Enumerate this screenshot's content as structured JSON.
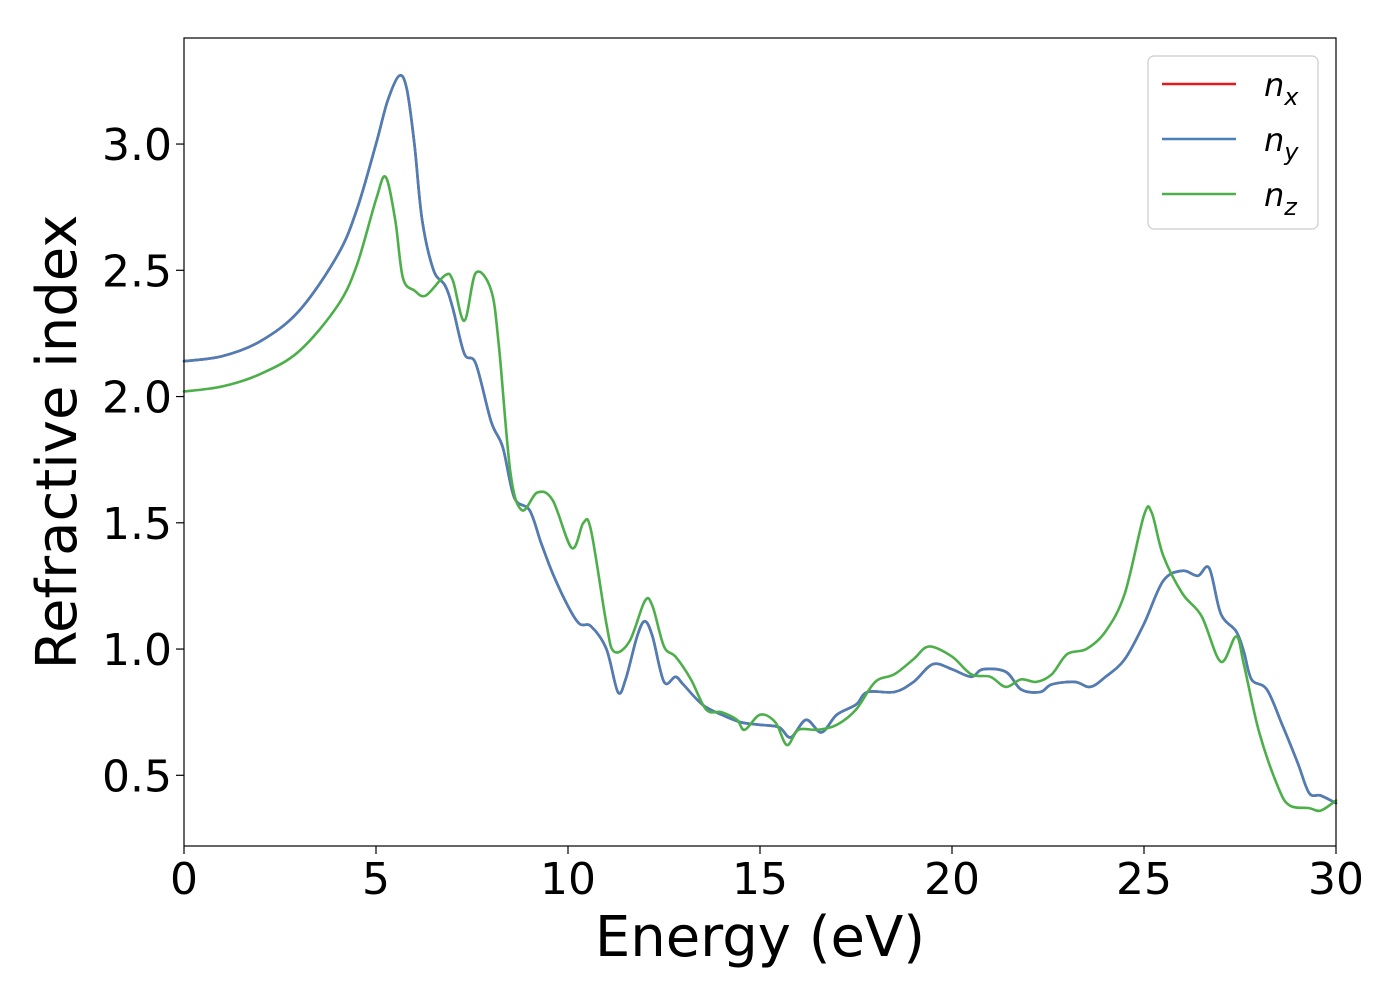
{
  "chart_data": {
    "type": "line",
    "xlabel": "Energy (eV)",
    "ylabel": "Refractive index",
    "xlim": [
      0,
      30
    ],
    "ylim": [
      0.22,
      3.42
    ],
    "xticks": [
      "0",
      "5",
      "10",
      "15",
      "20",
      "25",
      "30"
    ],
    "xtick_values": [
      0,
      5,
      10,
      15,
      20,
      25,
      30
    ],
    "yticks": [
      "0.5",
      "1.0",
      "1.5",
      "2.0",
      "2.5",
      "3.0"
    ],
    "ytick_values": [
      0.5,
      1.0,
      1.5,
      2.0,
      2.5,
      3.0
    ],
    "grid": false,
    "legend_position": "top-right",
    "series": [
      {
        "name": "n",
        "subscript": "x",
        "color": "#e41a1c",
        "points": [
          [
            0,
            2.14
          ],
          [
            1,
            2.16
          ],
          [
            2,
            2.22
          ],
          [
            3,
            2.34
          ],
          [
            4,
            2.56
          ],
          [
            4.5,
            2.74
          ],
          [
            5,
            3.0
          ],
          [
            5.3,
            3.17
          ],
          [
            5.6,
            3.27
          ],
          [
            5.8,
            3.22
          ],
          [
            6.0,
            3.0
          ],
          [
            6.2,
            2.7
          ],
          [
            6.5,
            2.5
          ],
          [
            6.8,
            2.44
          ],
          [
            7.0,
            2.35
          ],
          [
            7.3,
            2.17
          ],
          [
            7.6,
            2.13
          ],
          [
            8.0,
            1.9
          ],
          [
            8.3,
            1.8
          ],
          [
            8.6,
            1.6
          ],
          [
            9.0,
            1.55
          ],
          [
            9.3,
            1.42
          ],
          [
            9.6,
            1.3
          ],
          [
            10.0,
            1.17
          ],
          [
            10.3,
            1.1
          ],
          [
            10.6,
            1.09
          ],
          [
            11.0,
            1.0
          ],
          [
            11.3,
            0.83
          ],
          [
            11.5,
            0.88
          ],
          [
            11.8,
            1.05
          ],
          [
            12.0,
            1.11
          ],
          [
            12.2,
            1.05
          ],
          [
            12.5,
            0.87
          ],
          [
            12.8,
            0.89
          ],
          [
            13.0,
            0.86
          ],
          [
            13.5,
            0.78
          ],
          [
            14.0,
            0.74
          ],
          [
            14.5,
            0.71
          ],
          [
            15.0,
            0.7
          ],
          [
            15.5,
            0.69
          ],
          [
            15.8,
            0.65
          ],
          [
            16.2,
            0.72
          ],
          [
            16.6,
            0.67
          ],
          [
            17.0,
            0.74
          ],
          [
            17.5,
            0.78
          ],
          [
            17.8,
            0.83
          ],
          [
            18.5,
            0.83
          ],
          [
            19.0,
            0.87
          ],
          [
            19.5,
            0.94
          ],
          [
            20.0,
            0.92
          ],
          [
            20.5,
            0.89
          ],
          [
            20.8,
            0.92
          ],
          [
            21.4,
            0.91
          ],
          [
            21.8,
            0.84
          ],
          [
            22.3,
            0.83
          ],
          [
            22.6,
            0.86
          ],
          [
            23.2,
            0.87
          ],
          [
            23.6,
            0.85
          ],
          [
            24.0,
            0.89
          ],
          [
            24.5,
            0.96
          ],
          [
            25.0,
            1.1
          ],
          [
            25.5,
            1.27
          ],
          [
            26.0,
            1.31
          ],
          [
            26.4,
            1.29
          ],
          [
            26.7,
            1.32
          ],
          [
            27.0,
            1.14
          ],
          [
            27.4,
            1.07
          ],
          [
            27.6,
            0.99
          ],
          [
            27.8,
            0.88
          ],
          [
            28.2,
            0.84
          ],
          [
            28.6,
            0.7
          ],
          [
            29.0,
            0.55
          ],
          [
            29.3,
            0.43
          ],
          [
            29.6,
            0.42
          ],
          [
            30.0,
            0.39
          ]
        ]
      },
      {
        "name": "n",
        "subscript": "y",
        "color": "#4a7fb8",
        "points": [
          [
            0,
            2.14
          ],
          [
            1,
            2.16
          ],
          [
            2,
            2.22
          ],
          [
            3,
            2.34
          ],
          [
            4,
            2.56
          ],
          [
            4.5,
            2.74
          ],
          [
            5,
            3.0
          ],
          [
            5.3,
            3.17
          ],
          [
            5.6,
            3.27
          ],
          [
            5.8,
            3.22
          ],
          [
            6.0,
            3.0
          ],
          [
            6.2,
            2.7
          ],
          [
            6.5,
            2.5
          ],
          [
            6.8,
            2.44
          ],
          [
            7.0,
            2.35
          ],
          [
            7.3,
            2.17
          ],
          [
            7.6,
            2.13
          ],
          [
            8.0,
            1.9
          ],
          [
            8.3,
            1.8
          ],
          [
            8.6,
            1.6
          ],
          [
            9.0,
            1.55
          ],
          [
            9.3,
            1.42
          ],
          [
            9.6,
            1.3
          ],
          [
            10.0,
            1.17
          ],
          [
            10.3,
            1.1
          ],
          [
            10.6,
            1.09
          ],
          [
            11.0,
            1.0
          ],
          [
            11.3,
            0.83
          ],
          [
            11.5,
            0.88
          ],
          [
            11.8,
            1.05
          ],
          [
            12.0,
            1.11
          ],
          [
            12.2,
            1.05
          ],
          [
            12.5,
            0.87
          ],
          [
            12.8,
            0.89
          ],
          [
            13.0,
            0.86
          ],
          [
            13.5,
            0.78
          ],
          [
            14.0,
            0.74
          ],
          [
            14.5,
            0.71
          ],
          [
            15.0,
            0.7
          ],
          [
            15.5,
            0.69
          ],
          [
            15.8,
            0.65
          ],
          [
            16.2,
            0.72
          ],
          [
            16.6,
            0.67
          ],
          [
            17.0,
            0.74
          ],
          [
            17.5,
            0.78
          ],
          [
            17.8,
            0.83
          ],
          [
            18.5,
            0.83
          ],
          [
            19.0,
            0.87
          ],
          [
            19.5,
            0.94
          ],
          [
            20.0,
            0.92
          ],
          [
            20.5,
            0.89
          ],
          [
            20.8,
            0.92
          ],
          [
            21.4,
            0.91
          ],
          [
            21.8,
            0.84
          ],
          [
            22.3,
            0.83
          ],
          [
            22.6,
            0.86
          ],
          [
            23.2,
            0.87
          ],
          [
            23.6,
            0.85
          ],
          [
            24.0,
            0.89
          ],
          [
            24.5,
            0.96
          ],
          [
            25.0,
            1.1
          ],
          [
            25.5,
            1.27
          ],
          [
            26.0,
            1.31
          ],
          [
            26.4,
            1.29
          ],
          [
            26.7,
            1.32
          ],
          [
            27.0,
            1.14
          ],
          [
            27.4,
            1.07
          ],
          [
            27.6,
            0.99
          ],
          [
            27.8,
            0.88
          ],
          [
            28.2,
            0.84
          ],
          [
            28.6,
            0.7
          ],
          [
            29.0,
            0.55
          ],
          [
            29.3,
            0.43
          ],
          [
            29.6,
            0.42
          ],
          [
            30.0,
            0.39
          ]
        ]
      },
      {
        "name": "n",
        "subscript": "z",
        "color": "#4daf4a",
        "points": [
          [
            0,
            2.02
          ],
          [
            1,
            2.04
          ],
          [
            2,
            2.09
          ],
          [
            3,
            2.18
          ],
          [
            4,
            2.36
          ],
          [
            4.5,
            2.52
          ],
          [
            5,
            2.78
          ],
          [
            5.25,
            2.87
          ],
          [
            5.5,
            2.7
          ],
          [
            5.7,
            2.47
          ],
          [
            6.0,
            2.42
          ],
          [
            6.3,
            2.4
          ],
          [
            6.8,
            2.48
          ],
          [
            7.0,
            2.46
          ],
          [
            7.3,
            2.3
          ],
          [
            7.6,
            2.49
          ],
          [
            8.0,
            2.42
          ],
          [
            8.2,
            2.2
          ],
          [
            8.5,
            1.7
          ],
          [
            8.8,
            1.55
          ],
          [
            9.2,
            1.62
          ],
          [
            9.6,
            1.59
          ],
          [
            10.1,
            1.4
          ],
          [
            10.4,
            1.5
          ],
          [
            10.6,
            1.47
          ],
          [
            11.0,
            1.1
          ],
          [
            11.2,
            0.99
          ],
          [
            11.6,
            1.03
          ],
          [
            12.0,
            1.19
          ],
          [
            12.2,
            1.17
          ],
          [
            12.5,
            1.01
          ],
          [
            12.8,
            0.97
          ],
          [
            13.2,
            0.88
          ],
          [
            13.6,
            0.76
          ],
          [
            14.0,
            0.75
          ],
          [
            14.4,
            0.72
          ],
          [
            14.6,
            0.68
          ],
          [
            15.0,
            0.74
          ],
          [
            15.4,
            0.71
          ],
          [
            15.7,
            0.62
          ],
          [
            16.0,
            0.68
          ],
          [
            16.5,
            0.68
          ],
          [
            17.0,
            0.7
          ],
          [
            17.5,
            0.76
          ],
          [
            18.0,
            0.87
          ],
          [
            18.5,
            0.9
          ],
          [
            19.0,
            0.96
          ],
          [
            19.4,
            1.01
          ],
          [
            20.0,
            0.97
          ],
          [
            20.5,
            0.9
          ],
          [
            21.0,
            0.89
          ],
          [
            21.4,
            0.85
          ],
          [
            21.8,
            0.88
          ],
          [
            22.2,
            0.87
          ],
          [
            22.6,
            0.9
          ],
          [
            23.0,
            0.98
          ],
          [
            23.5,
            1.0
          ],
          [
            24.0,
            1.07
          ],
          [
            24.5,
            1.22
          ],
          [
            25.0,
            1.53
          ],
          [
            25.2,
            1.54
          ],
          [
            25.5,
            1.37
          ],
          [
            26.0,
            1.22
          ],
          [
            26.5,
            1.13
          ],
          [
            27.0,
            0.95
          ],
          [
            27.4,
            1.05
          ],
          [
            27.6,
            0.94
          ],
          [
            28.0,
            0.67
          ],
          [
            28.5,
            0.45
          ],
          [
            28.8,
            0.38
          ],
          [
            29.3,
            0.37
          ],
          [
            29.6,
            0.36
          ],
          [
            30.0,
            0.4
          ]
        ]
      }
    ]
  }
}
